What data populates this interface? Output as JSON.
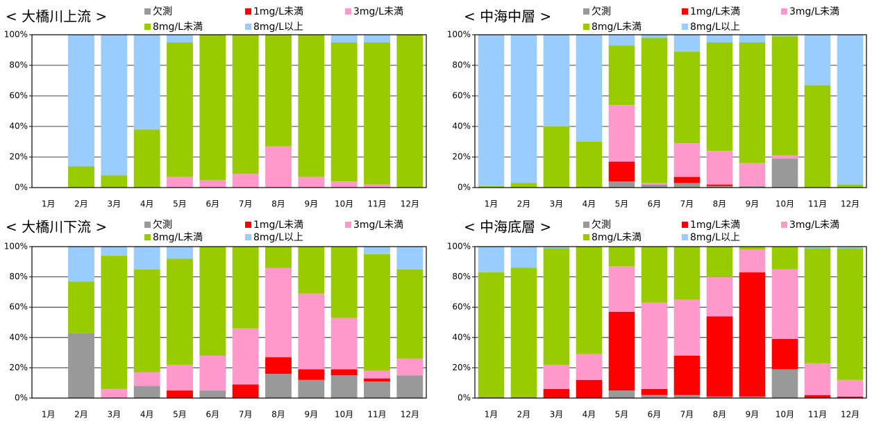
{
  "chart_data": [
    {
      "type": "bar",
      "stacked": true,
      "title": "< 大橋川上流 >",
      "categories": [
        "1月",
        "2月",
        "3月",
        "4月",
        "5月",
        "6月",
        "7月",
        "8月",
        "9月",
        "10月",
        "11月",
        "12月"
      ],
      "ylim": [
        0,
        100
      ],
      "yticks": [
        {
          "value": 0,
          "label": "0%"
        },
        {
          "value": 20,
          "label": "20%"
        },
        {
          "value": 40,
          "label": "40%"
        },
        {
          "value": 60,
          "label": "60%"
        },
        {
          "value": 80,
          "label": "80%"
        },
        {
          "value": 100,
          "label": "100%"
        }
      ],
      "grid": true,
      "series": [
        {
          "name": "欠測",
          "color": "#999999",
          "values": [
            0,
            0,
            0,
            0,
            0,
            0,
            0,
            0,
            0,
            0,
            0,
            0
          ]
        },
        {
          "name": "1mg/L未満",
          "color": "#ff0000",
          "values": [
            0,
            0,
            0,
            0,
            0,
            0,
            0,
            0,
            0,
            0,
            0,
            0
          ]
        },
        {
          "name": "3mg/L未満",
          "color": "#ff99cc",
          "values": [
            0,
            0,
            0,
            0,
            7,
            5,
            9,
            27,
            7,
            4,
            2,
            0
          ]
        },
        {
          "name": "8mg/L未満",
          "color": "#99cc00",
          "values": [
            0,
            14,
            8,
            38,
            88,
            95,
            91,
            73,
            93,
            91,
            93,
            100
          ]
        },
        {
          "name": "8mg/L以上",
          "color": "#99ccff",
          "values": [
            0,
            86,
            92,
            62,
            5,
            0,
            0,
            0,
            0,
            5,
            5,
            0
          ]
        }
      ]
    },
    {
      "type": "bar",
      "stacked": true,
      "title": "< 中海中層 >",
      "categories": [
        "1月",
        "2月",
        "3月",
        "4月",
        "5月",
        "6月",
        "7月",
        "8月",
        "9月",
        "10月",
        "11月",
        "12月"
      ],
      "ylim": [
        0,
        100
      ],
      "yticks": [
        {
          "value": 0,
          "label": "0%"
        },
        {
          "value": 20,
          "label": "20%"
        },
        {
          "value": 40,
          "label": "40%"
        },
        {
          "value": 60,
          "label": "60%"
        },
        {
          "value": 80,
          "label": "80%"
        },
        {
          "value": 100,
          "label": "100%"
        }
      ],
      "grid": true,
      "series": [
        {
          "name": "欠測",
          "color": "#999999",
          "values": [
            0,
            0,
            0,
            0,
            4,
            2,
            3,
            1,
            1,
            19,
            0,
            0
          ]
        },
        {
          "name": "1mg/L未満",
          "color": "#ff0000",
          "values": [
            0,
            0,
            0,
            0,
            13,
            0,
            4,
            1,
            0,
            0,
            0,
            0
          ]
        },
        {
          "name": "3mg/L未満",
          "color": "#ff99cc",
          "values": [
            0,
            0,
            0,
            0,
            37,
            1,
            22,
            22,
            15,
            2,
            0,
            0
          ]
        },
        {
          "name": "8mg/L未満",
          "color": "#99cc00",
          "values": [
            1,
            3,
            40,
            30,
            39,
            95,
            60,
            71,
            79,
            78,
            67,
            2
          ]
        },
        {
          "name": "8mg/L以上",
          "color": "#99ccff",
          "values": [
            99,
            97,
            60,
            70,
            7,
            2,
            11,
            5,
            5,
            1,
            33,
            98
          ]
        }
      ]
    },
    {
      "type": "bar",
      "stacked": true,
      "title": "< 大橋川下流 >",
      "categories": [
        "1月",
        "2月",
        "3月",
        "4月",
        "5月",
        "6月",
        "7月",
        "8月",
        "9月",
        "10月",
        "11月",
        "12月"
      ],
      "ylim": [
        0,
        100
      ],
      "yticks": [
        {
          "value": 0,
          "label": "0%"
        },
        {
          "value": 20,
          "label": "20%"
        },
        {
          "value": 40,
          "label": "40%"
        },
        {
          "value": 60,
          "label": "60%"
        },
        {
          "value": 80,
          "label": "80%"
        },
        {
          "value": 100,
          "label": "100%"
        }
      ],
      "grid": true,
      "series": [
        {
          "name": "欠測",
          "color": "#999999",
          "values": [
            0,
            43,
            0,
            8,
            0,
            5,
            0,
            16,
            12,
            15,
            11,
            15
          ]
        },
        {
          "name": "1mg/L未満",
          "color": "#ff0000",
          "values": [
            0,
            0,
            0,
            0,
            5,
            0,
            9,
            11,
            7,
            4,
            2,
            0
          ]
        },
        {
          "name": "3mg/L未満",
          "color": "#ff99cc",
          "values": [
            0,
            0,
            6,
            9,
            17,
            23,
            37,
            59,
            50,
            34,
            5,
            11
          ]
        },
        {
          "name": "8mg/L未満",
          "color": "#99cc00",
          "values": [
            0,
            34,
            88,
            68,
            70,
            72,
            54,
            14,
            31,
            47,
            77,
            59
          ]
        },
        {
          "name": "8mg/L以上",
          "color": "#99ccff",
          "values": [
            0,
            23,
            6,
            15,
            8,
            0,
            0,
            0,
            0,
            0,
            5,
            15
          ]
        }
      ]
    },
    {
      "type": "bar",
      "stacked": true,
      "title": "< 中海底層 >",
      "categories": [
        "1月",
        "2月",
        "3月",
        "4月",
        "5月",
        "6月",
        "7月",
        "8月",
        "9月",
        "10月",
        "11月",
        "12月"
      ],
      "ylim": [
        0,
        100
      ],
      "yticks": [
        {
          "value": 0,
          "label": "0%"
        },
        {
          "value": 20,
          "label": "20%"
        },
        {
          "value": 40,
          "label": "40%"
        },
        {
          "value": 60,
          "label": "60%"
        },
        {
          "value": 80,
          "label": "80%"
        },
        {
          "value": 100,
          "label": "100%"
        }
      ],
      "grid": true,
      "series": [
        {
          "name": "欠測",
          "color": "#999999",
          "values": [
            1,
            1,
            0,
            0,
            5,
            2,
            2,
            1,
            1,
            19,
            0,
            0
          ]
        },
        {
          "name": "1mg/L未満",
          "color": "#ff0000",
          "values": [
            0,
            0,
            6,
            12,
            52,
            4,
            26,
            53,
            82,
            20,
            2,
            1
          ]
        },
        {
          "name": "3mg/L未満",
          "color": "#ff99cc",
          "values": [
            0,
            0,
            16,
            17,
            30,
            57,
            37,
            26,
            15,
            46,
            21,
            11
          ]
        },
        {
          "name": "8mg/L未満",
          "color": "#99cc00",
          "values": [
            82,
            85,
            77,
            71,
            13,
            37,
            35,
            20,
            2,
            15,
            76,
            87
          ]
        },
        {
          "name": "8mg/L以上",
          "color": "#99ccff",
          "values": [
            17,
            14,
            1,
            0,
            0,
            0,
            0,
            0,
            0,
            0,
            1,
            1
          ]
        }
      ]
    }
  ]
}
